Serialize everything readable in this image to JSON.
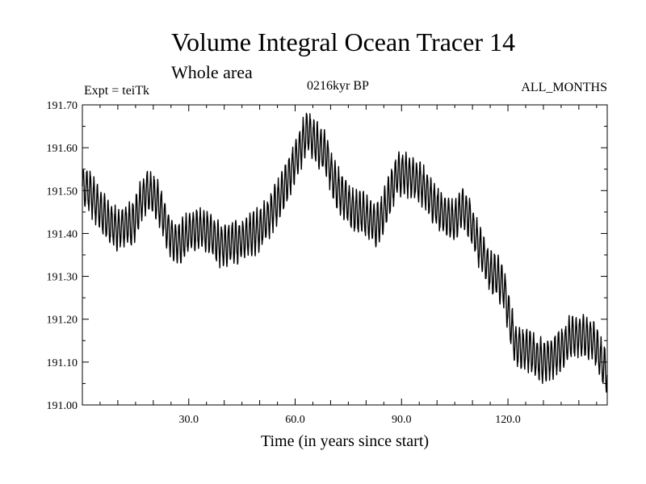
{
  "chart_data": {
    "type": "line",
    "title": "Volume Integral Ocean Tracer 14",
    "subtitle": "Whole area",
    "experiment_label": "Expt = teiTk",
    "period_label": "0216kyr BP",
    "months_label": "ALL_MONTHS",
    "xlabel": "Time (in years since start)",
    "ylabel": "",
    "xlim": [
      0,
      148
    ],
    "ylim": [
      191.0,
      191.7
    ],
    "x_ticks": [
      30,
      60,
      90,
      120
    ],
    "x_tick_labels": [
      "30.0",
      "60.0",
      "90.0",
      "120.0"
    ],
    "y_ticks": [
      191.0,
      191.1,
      191.2,
      191.3,
      191.4,
      191.5,
      191.6,
      191.7
    ],
    "y_tick_labels": [
      "191.00",
      "191.10",
      "191.20",
      "191.30",
      "191.40",
      "191.50",
      "191.60",
      "191.70"
    ],
    "grid": false,
    "line_color": "#000000",
    "seasonal_amplitude": 0.045,
    "series": [
      {
        "x": [
          0,
          2,
          4,
          6,
          8,
          10,
          12,
          14,
          16,
          18,
          20,
          22,
          24,
          26,
          28,
          30,
          32,
          34,
          36,
          38,
          40,
          42,
          44,
          46,
          48,
          50,
          52,
          54,
          56,
          58,
          60,
          62,
          63.5,
          65,
          67,
          69,
          71,
          73,
          75,
          77,
          79,
          81,
          83,
          85,
          87,
          89,
          91,
          93,
          95,
          97,
          99,
          101,
          103,
          105,
          107,
          109,
          111,
          113,
          115,
          117,
          119,
          120,
          121,
          122,
          124,
          126,
          128,
          130,
          132,
          134,
          136,
          138,
          140,
          142,
          144,
          146,
          148
        ],
        "y": [
          191.51,
          191.5,
          191.47,
          191.44,
          191.42,
          191.41,
          191.42,
          191.42,
          191.46,
          191.5,
          191.49,
          191.46,
          191.41,
          191.38,
          191.38,
          191.4,
          191.41,
          191.41,
          191.4,
          191.38,
          191.37,
          191.38,
          191.38,
          191.39,
          191.4,
          191.41,
          191.43,
          191.46,
          191.49,
          191.53,
          191.57,
          191.61,
          191.64,
          191.62,
          191.6,
          191.58,
          191.52,
          191.49,
          191.47,
          191.45,
          191.45,
          191.43,
          191.42,
          191.45,
          191.5,
          191.54,
          191.54,
          191.53,
          191.52,
          191.5,
          191.47,
          191.45,
          191.44,
          191.43,
          191.46,
          191.44,
          191.39,
          191.35,
          191.31,
          191.3,
          191.27,
          191.22,
          191.18,
          191.14,
          191.13,
          191.13,
          191.11,
          191.1,
          191.11,
          191.12,
          191.14,
          191.16,
          191.16,
          191.16,
          191.15,
          191.11,
          191.07
        ]
      }
    ]
  }
}
